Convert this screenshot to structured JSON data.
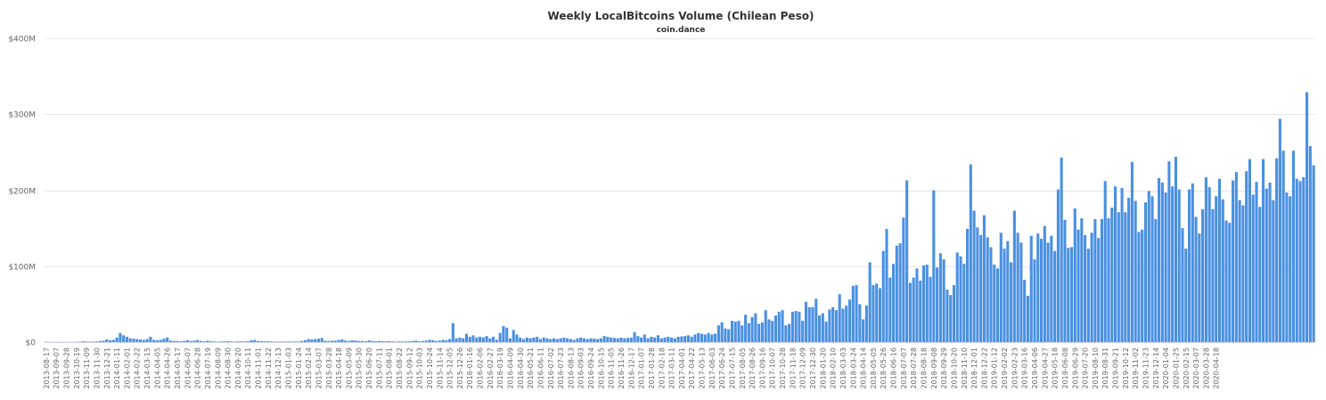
{
  "chart_data": {
    "type": "bar",
    "title": "Weekly LocalBitcoins Volume (Chilean Peso)",
    "subtitle": "coin.dance",
    "xlabel": "",
    "ylabel": "",
    "ylim": [
      0,
      400
    ],
    "y_unit": "M CLP",
    "y_ticks": [
      {
        "value": 0,
        "label": "$0"
      },
      {
        "value": 100,
        "label": "$100M"
      },
      {
        "value": 200,
        "label": "$200M"
      },
      {
        "value": 300,
        "label": "$300M"
      },
      {
        "value": 400,
        "label": "$400M"
      }
    ],
    "x_tick_labels": [
      "2013-08-17",
      "2013-09-07",
      "2013-09-28",
      "2013-10-19",
      "2013-11-09",
      "2013-11-30",
      "2013-12-21",
      "2014-01-11",
      "2014-02-01",
      "2014-02-22",
      "2014-03-15",
      "2014-04-05",
      "2014-04-26",
      "2014-05-17",
      "2014-06-07",
      "2014-06-28",
      "2014-07-19",
      "2014-08-09",
      "2014-08-30",
      "2014-09-20",
      "2014-10-11",
      "2014-11-01",
      "2014-11-22",
      "2014-12-13",
      "2015-01-03",
      "2015-01-24",
      "2015-02-14",
      "2015-03-07",
      "2015-03-28",
      "2015-04-18",
      "2015-05-09",
      "2015-05-30",
      "2015-06-20",
      "2015-07-11",
      "2015-08-01",
      "2015-08-22",
      "2015-09-12",
      "2015-10-03",
      "2015-10-24",
      "2015-11-14",
      "2015-12-05",
      "2015-12-26",
      "2016-01-16",
      "2016-02-06",
      "2016-02-27",
      "2016-03-19",
      "2016-04-09",
      "2016-04-30",
      "2016-05-21",
      "2016-06-11",
      "2016-07-02",
      "2016-07-23",
      "2016-08-13",
      "2016-09-03",
      "2016-09-24",
      "2016-10-15",
      "2016-11-05",
      "2016-11-26",
      "2016-12-17",
      "2017-01-07",
      "2017-01-28",
      "2017-02-18",
      "2017-03-11",
      "2017-04-01",
      "2017-04-22",
      "2017-05-13",
      "2017-06-03",
      "2017-06-24",
      "2017-07-15",
      "2017-08-05",
      "2017-08-26",
      "2017-09-16",
      "2017-10-07",
      "2017-10-28",
      "2017-11-18",
      "2017-12-09",
      "2017-12-30",
      "2018-01-20",
      "2018-02-10",
      "2018-03-03",
      "2018-03-24",
      "2018-04-14",
      "2018-05-05",
      "2018-05-26",
      "2018-06-16",
      "2018-07-07",
      "2018-07-28",
      "2018-08-18",
      "2018-09-08",
      "2018-09-29",
      "2018-10-20",
      "2018-11-10",
      "2018-12-01",
      "2018-12-22",
      "2019-01-12",
      "2019-02-02",
      "2019-02-23",
      "2019-03-16",
      "2019-04-06",
      "2019-04-27",
      "2019-05-18",
      "2019-06-08",
      "2019-06-29",
      "2019-07-20",
      "2019-08-10",
      "2019-08-31",
      "2019-09-21",
      "2019-10-12",
      "2019-11-02",
      "2019-11-23",
      "2019-12-14",
      "2020-01-04",
      "2020-01-25",
      "2020-02-15",
      "2020-03-07",
      "2020-03-28",
      "2020-04-18"
    ],
    "series_color": "#4a90e2",
    "grid": true,
    "legend": "none",
    "series": [
      {
        "values": [
          0.5,
          0.3,
          0.2,
          0.2,
          0.2,
          0.3,
          0.2,
          0.2,
          0.2,
          0.3,
          0.6,
          1.0,
          0.8,
          0.6,
          0.8,
          0.9,
          1.5,
          2.0,
          3.5,
          2.5,
          3.0,
          6.0,
          12.0,
          9.0,
          7.0,
          5.0,
          4.5,
          4.0,
          3.5,
          3.0,
          4.0,
          7.0,
          3.0,
          2.5,
          3.0,
          4.5,
          6.0,
          2.0,
          1.5,
          1.5,
          1.0,
          1.5,
          2.5,
          1.5,
          1.8,
          2.8,
          1.5,
          1.0,
          2.0,
          1.0,
          0.8,
          0.6,
          0.8,
          1.0,
          1.2,
          0.8,
          0.6,
          1.0,
          0.9,
          0.8,
          1.2,
          2.5,
          3.0,
          1.5,
          1.2,
          1.0,
          1.0,
          0.8,
          0.6,
          0.7,
          0.8,
          0.7,
          0.8,
          0.6,
          0.7,
          0.8,
          1.5,
          2.5,
          4.0,
          3.5,
          4.0,
          4.5,
          5.5,
          1.8,
          1.5,
          1.8,
          2.0,
          2.8,
          3.5,
          2.0,
          1.5,
          2.5,
          2.0,
          1.5,
          1.5,
          1.0,
          2.2,
          1.5,
          1.0,
          1.5,
          1.2,
          1.0,
          1.2,
          0.8,
          0.7,
          0.9,
          0.8,
          1.0,
          1.0,
          1.5,
          2.0,
          1.0,
          1.5,
          2.0,
          3.0,
          2.5,
          1.5,
          2.0,
          3.0,
          2.5,
          4.0,
          25.0,
          5.0,
          6.0,
          5.0,
          11.0,
          7.0,
          9.0,
          6.0,
          7.0,
          6.0,
          8.0,
          5.0,
          7.0,
          3.0,
          12.0,
          21.0,
          19.0,
          5.0,
          16.0,
          10.0,
          6.0,
          4.0,
          6.0,
          5.0,
          6.0,
          7.0,
          4.0,
          6.0,
          5.0,
          4.0,
          5.0,
          4.0,
          5.0,
          6.0,
          5.0,
          4.0,
          3.0,
          5.0,
          6.0,
          5.0,
          4.0,
          5.0,
          4.5,
          4.0,
          5.0,
          8.0,
          7.0,
          6.0,
          5.5,
          5.0,
          6.0,
          5.0,
          5.5,
          6.0,
          13.0,
          8.0,
          6.0,
          10.0,
          5.0,
          7.0,
          6.0,
          9.0,
          5.0,
          6.0,
          7.0,
          6.0,
          5.0,
          7.0,
          7.5,
          8.0,
          9.0,
          7.0,
          10.0,
          12.0,
          11.0,
          10.0,
          12.0,
          10.0,
          11.0,
          22.0,
          26.0,
          18.0,
          17.0,
          28.0,
          27.0,
          28.0,
          22.0,
          36.0,
          25.0,
          33.0,
          38.0,
          24.0,
          26.0,
          42.0,
          30.0,
          28.0,
          35.0,
          40.0,
          42.0,
          22.0,
          24.0,
          40.0,
          41.0,
          40.0,
          28.0,
          53.0,
          46.0,
          46.0,
          57.0,
          35.0,
          38.0,
          27.0,
          43.0,
          46.0,
          42.0,
          63.0,
          44.0,
          48.0,
          56.0,
          74.0,
          75.0,
          50.0,
          30.0,
          48.0,
          105.0,
          75.0,
          77.0,
          71.0,
          120.0,
          149.0,
          85.0,
          103.0,
          127.0,
          130.0,
          164.0,
          213.0,
          78.0,
          85.0,
          97.0,
          81.0,
          101.0,
          102.0,
          86.0,
          200.0,
          98.0,
          117.0,
          109.0,
          69.0,
          62.0,
          75.0,
          118.0,
          113.0,
          103.0,
          149.0,
          234.0,
          173.0,
          151.0,
          141.0,
          167.0,
          138.0,
          125.0,
          102.0,
          97.0,
          144.0,
          123.0,
          133.0,
          105.0,
          173.0,
          144.0,
          131.0,
          82.0,
          61.0,
          140.0,
          109.0,
          143.0,
          136.0,
          153.0,
          131.0,
          140.0,
          120.0,
          201.0,
          243.0,
          161.0,
          124.0,
          125.0,
          176.0,
          148.0,
          163.0,
          141.0,
          123.0,
          144.0,
          162.0,
          137.0,
          162.0,
          212.0,
          163.0,
          177.0,
          205.0,
          171.0,
          203.0,
          171.0,
          190.0,
          237.0,
          186.0,
          145.0,
          148.0,
          184.0,
          199.0,
          192.0,
          162.0,
          216.0,
          210.0,
          197.0,
          238.0,
          205.0,
          244.0,
          201.0,
          150.0,
          123.0,
          201.0,
          209.0,
          165.0,
          143.0,
          175.0,
          217.0,
          204.0,
          175.0,
          192.0,
          215.0,
          188.0,
          160.0,
          157.0,
          213.0,
          224.0,
          187.0,
          180.0,
          225.0,
          241.0,
          194.0,
          211.0,
          178.0,
          241.0,
          202.0,
          210.0,
          187.0,
          242.0,
          294.0,
          252.0,
          197.0,
          192.0,
          252.0,
          215.0,
          212.0,
          217.0,
          329.0,
          258.0,
          233.0
        ]
      }
    ]
  }
}
